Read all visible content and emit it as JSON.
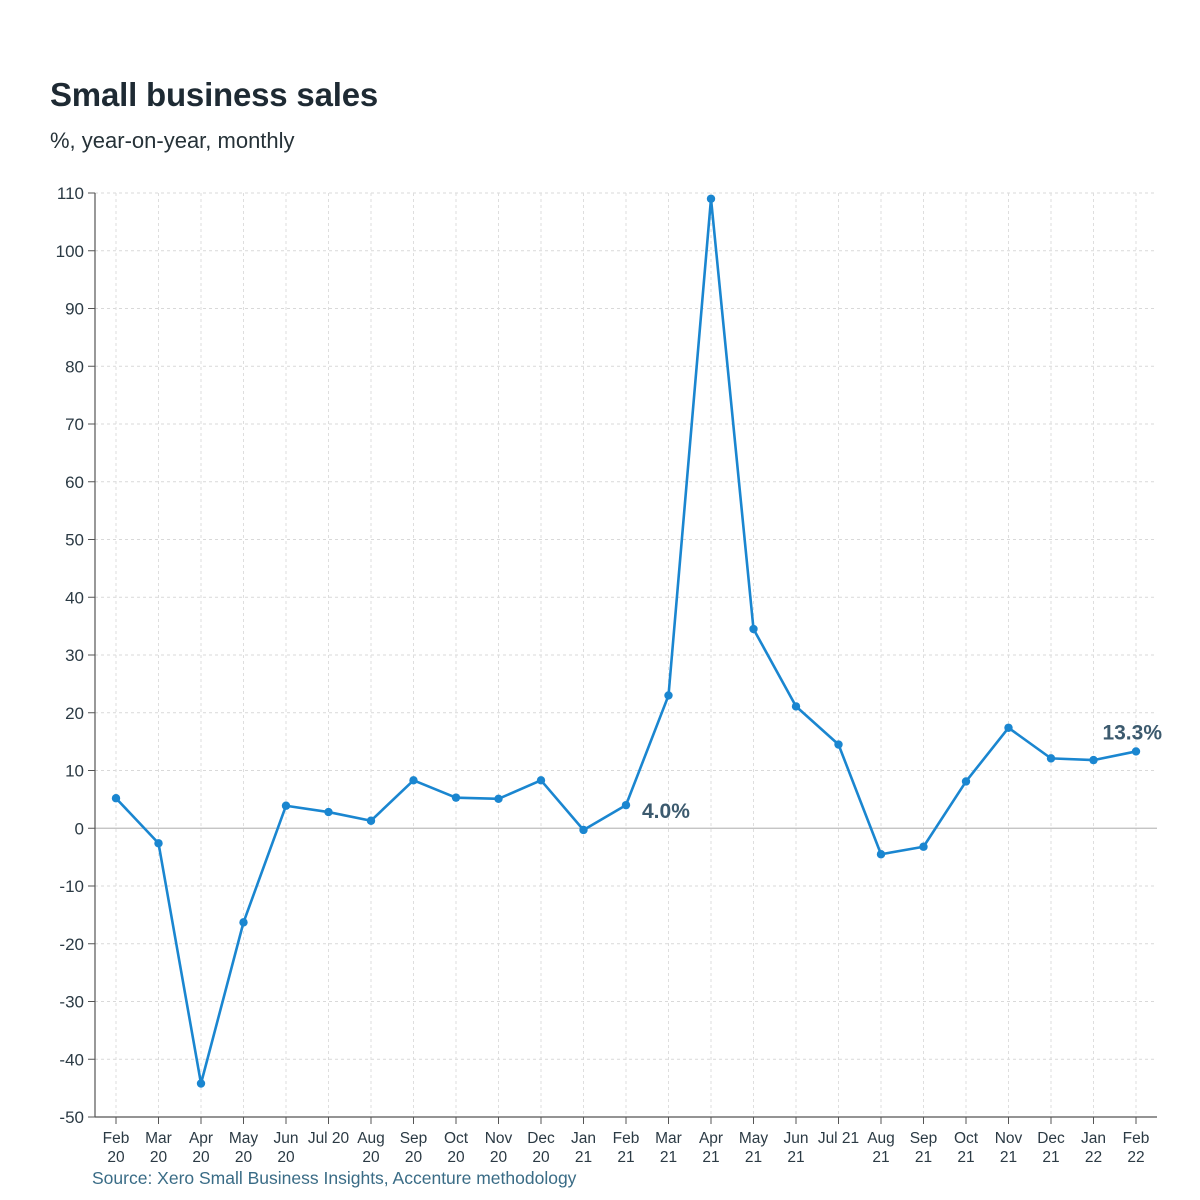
{
  "chart_data": {
    "type": "line",
    "title": "Small business sales",
    "subtitle": "%, year-on-year, monthly",
    "source": "Source: Xero Small Business Insights, Accenture methodology",
    "xlabel": "",
    "ylabel": "",
    "ylim": [
      -50,
      110
    ],
    "yticks": [
      110,
      100,
      90,
      80,
      70,
      60,
      50,
      40,
      30,
      20,
      10,
      0,
      -10,
      -20,
      -30,
      -40,
      -50
    ],
    "grid": true,
    "line_color": "#1a86d0",
    "annotation_color": "#3c5a6e",
    "categories": [
      [
        "Feb",
        "20"
      ],
      [
        "Mar",
        "20"
      ],
      [
        "Apr",
        "20"
      ],
      [
        "May",
        "20"
      ],
      [
        "Jun",
        "20"
      ],
      [
        "Jul 20",
        ""
      ],
      [
        "Aug",
        "20"
      ],
      [
        "Sep",
        "20"
      ],
      [
        "Oct",
        "20"
      ],
      [
        "Nov",
        "20"
      ],
      [
        "Dec",
        "20"
      ],
      [
        "Jan",
        "21"
      ],
      [
        "Feb",
        "21"
      ],
      [
        "Mar",
        "21"
      ],
      [
        "Apr",
        "21"
      ],
      [
        "May",
        "21"
      ],
      [
        "Jun",
        "21"
      ],
      [
        "Jul 21",
        ""
      ],
      [
        "Aug",
        "21"
      ],
      [
        "Sep",
        "21"
      ],
      [
        "Oct",
        "21"
      ],
      [
        "Nov",
        "21"
      ],
      [
        "Dec",
        "21"
      ],
      [
        "Jan",
        "22"
      ],
      [
        "Feb",
        "22"
      ]
    ],
    "series": [
      {
        "values": [
          5.2,
          -2.6,
          -44.2,
          -16.3,
          3.9,
          2.8,
          1.3,
          8.3,
          5.3,
          5.1,
          8.3,
          -0.3,
          4.0,
          23.0,
          109.0,
          34.5,
          21.1,
          14.5,
          -4.5,
          -3.2,
          8.1,
          17.4,
          12.1,
          11.8,
          13.3
        ]
      }
    ],
    "annotations": [
      {
        "index": 12,
        "text": "4.0%"
      },
      {
        "index": 24,
        "text": "13.3%"
      }
    ]
  }
}
